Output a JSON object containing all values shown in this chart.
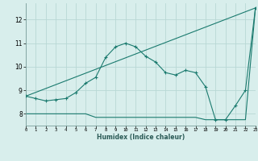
{
  "xlabel": "Humidex (Indice chaleur)",
  "background_color": "#d8eeec",
  "grid_color": "#b8d8d5",
  "line_color": "#1a7a6e",
  "x_min": 0,
  "x_max": 23,
  "y_min": 7.5,
  "y_max": 12.7,
  "yticks": [
    8,
    9,
    10,
    11,
    12
  ],
  "xticks": [
    0,
    1,
    2,
    3,
    4,
    5,
    6,
    7,
    8,
    9,
    10,
    11,
    12,
    13,
    14,
    15,
    16,
    17,
    18,
    19,
    20,
    21,
    22,
    23
  ],
  "curve1_x": [
    0,
    1,
    2,
    3,
    4,
    5,
    6,
    7,
    8,
    9,
    10,
    11,
    12,
    13,
    14,
    15,
    16,
    17,
    18,
    19,
    20,
    21,
    22,
    23
  ],
  "curve1_y": [
    8.75,
    8.65,
    8.55,
    8.6,
    8.65,
    8.9,
    9.3,
    9.55,
    10.4,
    10.85,
    11.0,
    10.85,
    10.45,
    10.2,
    9.75,
    9.65,
    9.85,
    9.75,
    9.15,
    7.75,
    7.75,
    8.35,
    9.0,
    12.5
  ],
  "curve2_x": [
    0,
    1,
    2,
    3,
    4,
    5,
    6,
    7,
    8,
    9,
    10,
    11,
    12,
    13,
    14,
    15,
    16,
    17,
    18,
    19,
    20,
    21,
    22,
    23
  ],
  "curve2_y": [
    8.0,
    8.0,
    8.0,
    8.0,
    8.0,
    8.0,
    8.0,
    7.85,
    7.85,
    7.85,
    7.85,
    7.85,
    7.85,
    7.85,
    7.85,
    7.85,
    7.85,
    7.85,
    7.75,
    7.75,
    7.75,
    7.75,
    7.75,
    12.5
  ],
  "curve3_x": [
    0,
    23
  ],
  "curve3_y": [
    8.75,
    12.5
  ]
}
